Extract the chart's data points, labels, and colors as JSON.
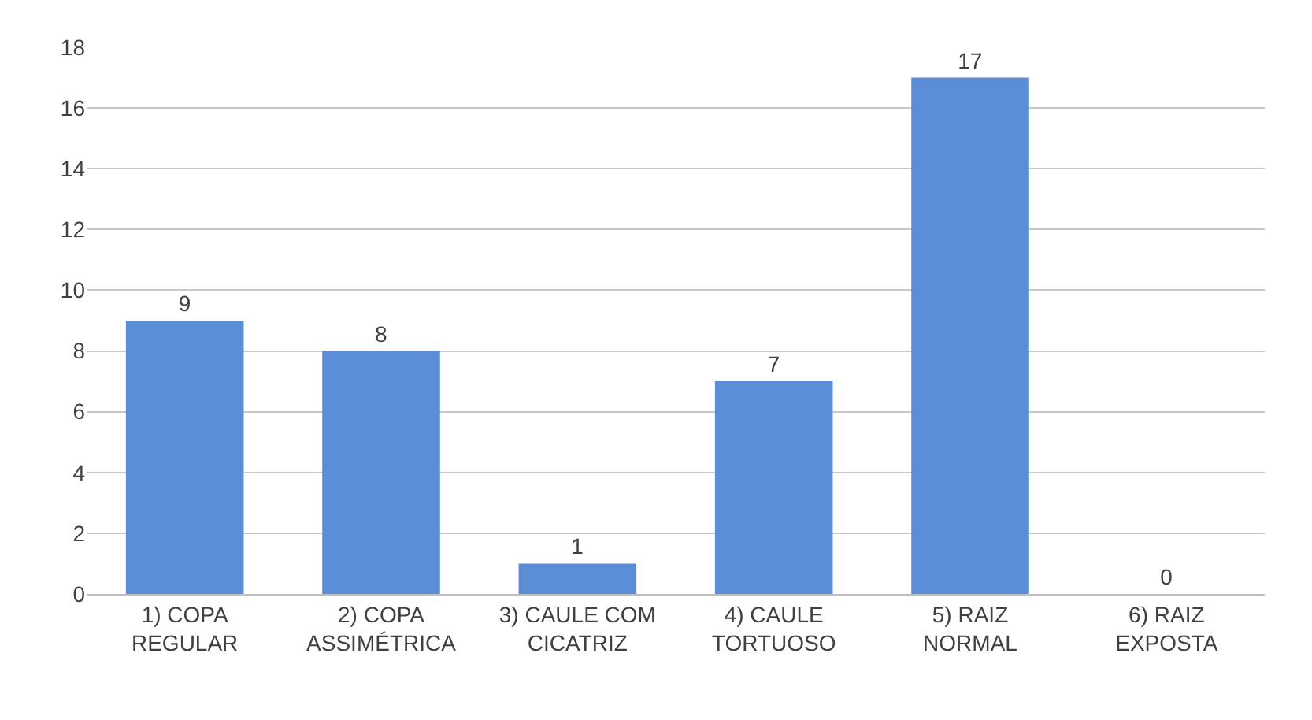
{
  "chart_data": {
    "type": "bar",
    "categories": [
      "1) COPA REGULAR",
      "2) COPA ASSIMÉTRICA",
      "3) CAULE COM CICATRIZ",
      "4) CAULE TORTUOSO",
      "5) RAIZ NORMAL",
      "6) RAIZ EXPOSTA"
    ],
    "values": [
      9,
      8,
      1,
      7,
      17,
      0
    ],
    "color": "#5b8ed6",
    "ylim": [
      0,
      18
    ],
    "yticks": [
      0,
      2,
      4,
      6,
      8,
      10,
      12,
      14,
      16,
      18
    ],
    "grid": "y",
    "data_labels": true
  }
}
